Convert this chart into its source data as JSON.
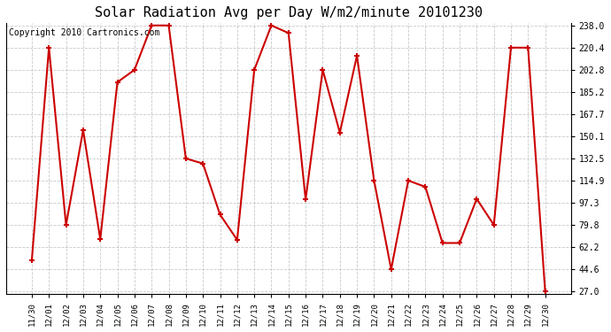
{
  "title": "Solar Radiation Avg per Day W/m2/minute 20101230",
  "copyright": "Copyright 2010 Cartronics.com",
  "labels": [
    "11/30",
    "12/01",
    "12/02",
    "12/03",
    "12/04",
    "12/05",
    "12/06",
    "12/07",
    "12/08",
    "12/09",
    "12/10",
    "12/11",
    "12/12",
    "12/13",
    "12/14",
    "12/15",
    "12/16",
    "12/17",
    "12/18",
    "12/19",
    "12/20",
    "12/21",
    "12/22",
    "12/23",
    "12/24",
    "12/25",
    "12/26",
    "12/27",
    "12/28",
    "12/29",
    "12/30"
  ],
  "values": [
    52.0,
    220.4,
    79.8,
    155.0,
    68.5,
    193.0,
    202.8,
    238.0,
    238.0,
    132.5,
    128.5,
    88.0,
    68.0,
    202.8,
    238.0,
    232.0,
    100.0,
    202.8,
    153.0,
    214.0,
    115.0,
    44.6,
    115.0,
    110.0,
    65.5,
    65.5,
    100.5,
    79.8,
    220.4,
    220.4,
    27.0
  ],
  "line_color": "#cc0000",
  "marker_color": "#cc0000",
  "bg_color": "#ffffff",
  "grid_color": "#bbbbbb",
  "title_fontsize": 11,
  "copyright_fontsize": 7,
  "yticks": [
    27.0,
    44.6,
    62.2,
    79.8,
    97.3,
    114.9,
    132.5,
    150.1,
    167.7,
    185.2,
    202.8,
    220.4,
    238.0
  ],
  "ylim_min": 27.0,
  "ylim_max": 238.0
}
